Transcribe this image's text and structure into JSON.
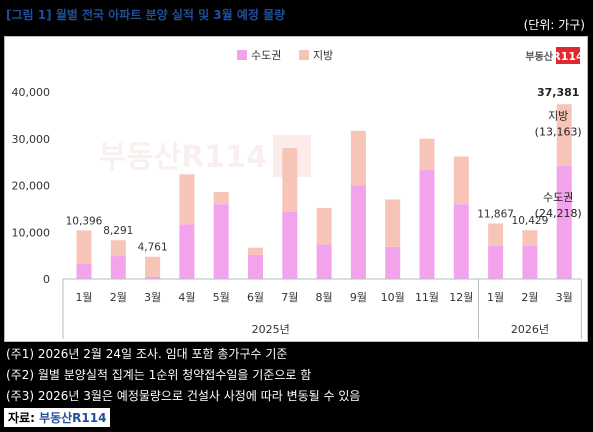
{
  "title": "[그림 1] 월별 전국 아파트 분양 실적 및 3월 예정 물량",
  "unit": "(단위: 가구)",
  "brand": "부동산R114",
  "notes": [
    "(주1) 2026년 2월 24일 조사. 임대 포함 총가구수 기준",
    "(주2) 월별 분양실적 집계는 1순위 청약접수일을 기준으로 함",
    "(주3) 2026년 3월은 예정물량으로 건설사 사정에 따라 변동될 수 있음"
  ],
  "source_label": "자료: ",
  "source_name": "부동산R114",
  "chart_data": {
    "type": "bar",
    "stacked": true,
    "categories": [
      "1월",
      "2월",
      "3월",
      "4월",
      "5월",
      "6월",
      "7월",
      "8월",
      "9월",
      "10월",
      "11월",
      "12월",
      "1월",
      "2월",
      "3월"
    ],
    "groups": [
      {
        "label": "2025년",
        "from": 0,
        "to": 11
      },
      {
        "label": "2026년",
        "from": 12,
        "to": 14
      }
    ],
    "series": [
      {
        "name": "수도권",
        "color": "#f2a3ec",
        "values": [
          3300,
          4900,
          500,
          11700,
          16000,
          5200,
          14400,
          7400,
          20000,
          6900,
          23300,
          16000,
          7100,
          7100,
          24218
        ]
      },
      {
        "name": "지방",
        "color": "#f7c4b8",
        "values": [
          7096,
          3391,
          4261,
          10700,
          2600,
          1500,
          13600,
          7800,
          11700,
          10100,
          6700,
          10200,
          4767,
          3329,
          13163
        ]
      }
    ],
    "data_labels": [
      {
        "index": 0,
        "text": "10,396"
      },
      {
        "index": 1,
        "text": "8,291"
      },
      {
        "index": 2,
        "text": "4,761"
      },
      {
        "index": 12,
        "text": "11,867"
      },
      {
        "index": 13,
        "text": "10,429"
      }
    ],
    "total_label": "37,381",
    "series_annotations": [
      {
        "index": 14,
        "series": 1,
        "name": "지방",
        "value": "(13,163)"
      },
      {
        "index": 14,
        "series": 0,
        "name": "수도권",
        "value": "(24,218)"
      }
    ],
    "yticks": [
      "0",
      "10,000",
      "20,000",
      "30,000",
      "40,000"
    ],
    "ylim": [
      0,
      40000
    ],
    "legend_position": "top",
    "grid": false
  }
}
